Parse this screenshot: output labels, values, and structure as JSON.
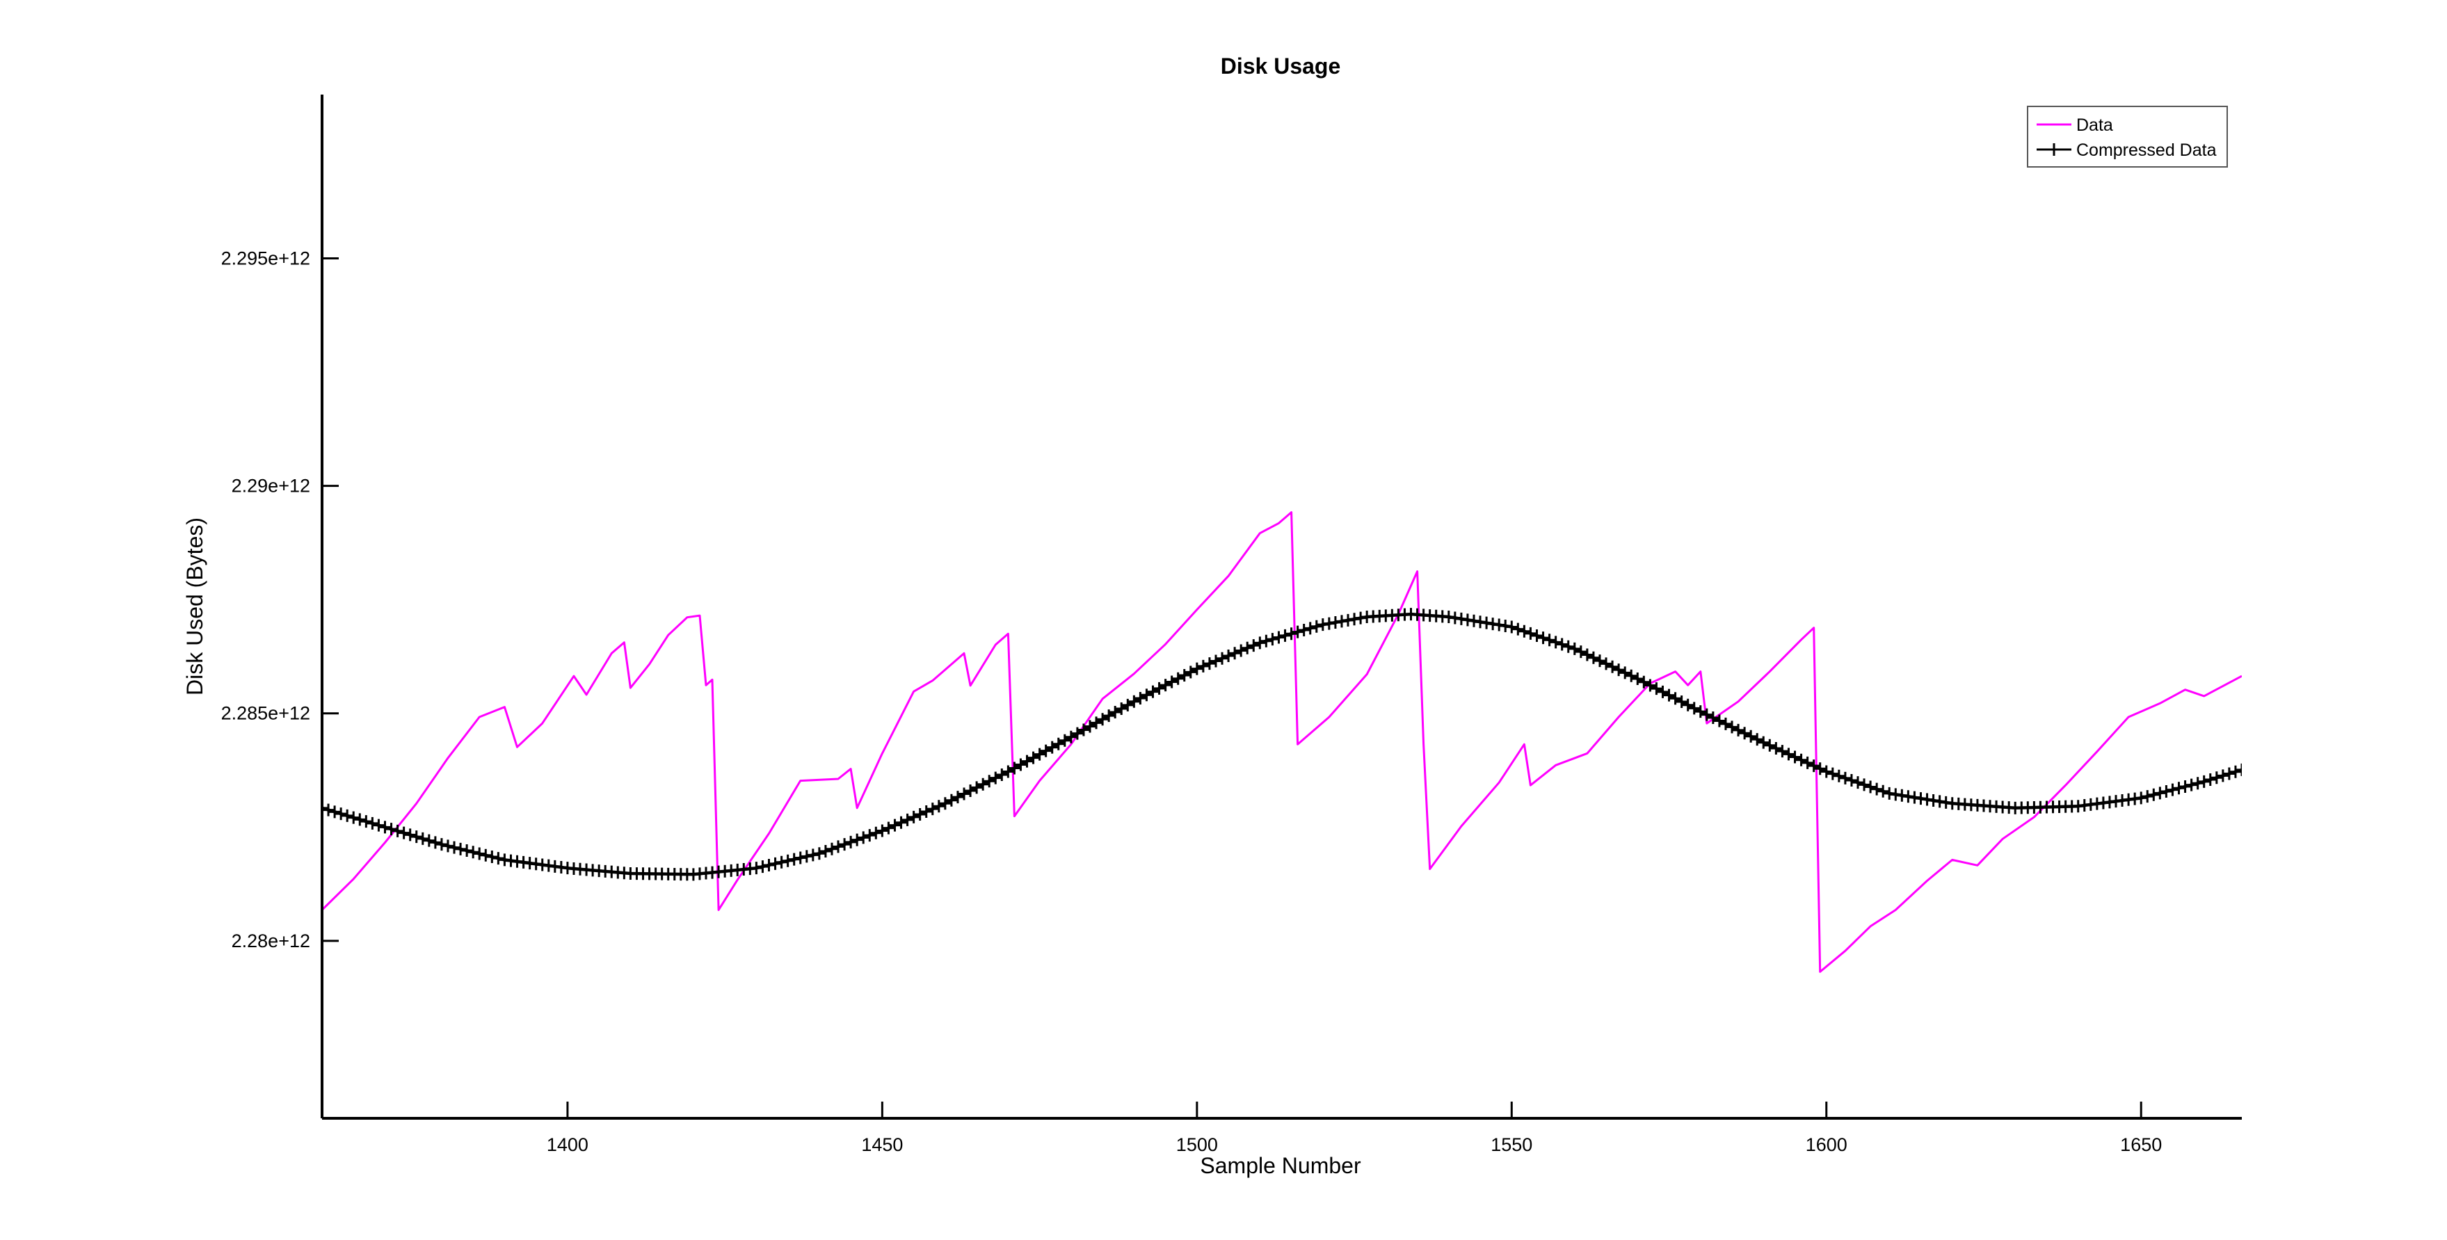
{
  "chart_data": {
    "type": "line",
    "title": "Disk Usage",
    "xlabel": "Sample Number",
    "ylabel": "Disk Used (Bytes)",
    "xlim": [
      1361,
      1666
    ],
    "ylim": [
      2276100000000.0,
      2298600000000.0
    ],
    "xticks": [
      1400,
      1450,
      1500,
      1550,
      1600,
      1650
    ],
    "xtick_labels": [
      "1400",
      "1450",
      "1500",
      "1550",
      "1600",
      "1650"
    ],
    "yticks": [
      2280000000000.0,
      2285000000000.0,
      2290000000000.0,
      2295000000000.0
    ],
    "ytick_labels": [
      "2.28e+12",
      "2.285e+12",
      "2.29e+12",
      "2.295e+12"
    ],
    "grid": false,
    "legend_position": "top-right",
    "series": [
      {
        "name": "Data",
        "color": "#ff00ff",
        "marker": "none",
        "points": [
          [
            1361,
            2280680000000.0
          ],
          [
            1366,
            2281360000000.0
          ],
          [
            1371,
            2282160000000.0
          ],
          [
            1376,
            2283020000000.0
          ],
          [
            1381,
            2284020000000.0
          ],
          [
            1386,
            2284920000000.0
          ],
          [
            1390,
            2285140000000.0
          ],
          [
            1392,
            2284260000000.0
          ],
          [
            1396,
            2284780000000.0
          ],
          [
            1401,
            2285820000000.0
          ],
          [
            1403,
            2285410000000.0
          ],
          [
            1407,
            2286320000000.0
          ],
          [
            1409,
            2286560000000.0
          ],
          [
            1410,
            2285560000000.0
          ],
          [
            1413,
            2286080000000.0
          ],
          [
            1416,
            2286720000000.0
          ],
          [
            1419,
            2287110000000.0
          ],
          [
            1421,
            2287150000000.0
          ],
          [
            1422,
            2285620000000.0
          ],
          [
            1423,
            2285740000000.0
          ],
          [
            1424,
            2280680000000.0
          ],
          [
            1427,
            2281340000000.0
          ],
          [
            1432,
            2282360000000.0
          ],
          [
            1437,
            2283520000000.0
          ],
          [
            1443,
            2283560000000.0
          ],
          [
            1445,
            2283780000000.0
          ],
          [
            1446,
            2282920000000.0
          ],
          [
            1450,
            2284120000000.0
          ],
          [
            1455,
            2285480000000.0
          ],
          [
            1458,
            2285720000000.0
          ],
          [
            1461,
            2286080000000.0
          ],
          [
            1463,
            2286320000000.0
          ],
          [
            1464,
            2285610000000.0
          ],
          [
            1468,
            2286510000000.0
          ],
          [
            1470,
            2286750000000.0
          ],
          [
            1471,
            2282740000000.0
          ],
          [
            1475,
            2283520000000.0
          ],
          [
            1480,
            2284320000000.0
          ],
          [
            1485,
            2285320000000.0
          ],
          [
            1490,
            2285870000000.0
          ],
          [
            1495,
            2286520000000.0
          ],
          [
            1500,
            2287280000000.0
          ],
          [
            1505,
            2288020000000.0
          ],
          [
            1510,
            2288960000000.0
          ],
          [
            1513,
            2289180000000.0
          ],
          [
            1515,
            2289420000000.0
          ],
          [
            1516,
            2284320000000.0
          ],
          [
            1521,
            2284920000000.0
          ],
          [
            1527,
            2285860000000.0
          ],
          [
            1532,
            2287180000000.0
          ],
          [
            1535,
            2288120000000.0
          ],
          [
            1536,
            2284320000000.0
          ],
          [
            1537,
            2281580000000.0
          ],
          [
            1542,
            2282520000000.0
          ],
          [
            1548,
            2283480000000.0
          ],
          [
            1552,
            2284320000000.0
          ],
          [
            1553,
            2283420000000.0
          ],
          [
            1557,
            2283860000000.0
          ],
          [
            1562,
            2284120000000.0
          ],
          [
            1567,
            2284920000000.0
          ],
          [
            1572,
            2285660000000.0
          ],
          [
            1576,
            2285920000000.0
          ],
          [
            1578,
            2285620000000.0
          ],
          [
            1580,
            2285920000000.0
          ],
          [
            1581,
            2284780000000.0
          ],
          [
            1586,
            2285260000000.0
          ],
          [
            1591,
            2285920000000.0
          ],
          [
            1596,
            2286620000000.0
          ],
          [
            1598,
            2286880000000.0
          ],
          [
            1599,
            2279320000000.0
          ],
          [
            1603,
            2279780000000.0
          ],
          [
            1607,
            2280320000000.0
          ],
          [
            1611,
            2280680000000.0
          ],
          [
            1616,
            2281320000000.0
          ],
          [
            1620,
            2281780000000.0
          ],
          [
            1624,
            2281660000000.0
          ],
          [
            1628,
            2282240000000.0
          ],
          [
            1633,
            2282720000000.0
          ],
          [
            1638,
            2283420000000.0
          ],
          [
            1643,
            2284160000000.0
          ],
          [
            1648,
            2284920000000.0
          ],
          [
            1653,
            2285220000000.0
          ],
          [
            1657,
            2285520000000.0
          ],
          [
            1660,
            2285380000000.0
          ],
          [
            1666,
            2285820000000.0
          ]
        ]
      },
      {
        "name": "Compressed Data",
        "color": "#000000",
        "marker": "+",
        "points": [
          [
            1361,
            2282920000000.0
          ],
          [
            1370,
            2282540000000.0
          ],
          [
            1380,
            2282120000000.0
          ],
          [
            1390,
            2281780000000.0
          ],
          [
            1400,
            2281600000000.0
          ],
          [
            1410,
            2281480000000.0
          ],
          [
            1420,
            2281460000000.0
          ],
          [
            1430,
            2281600000000.0
          ],
          [
            1440,
            2281920000000.0
          ],
          [
            1450,
            2282420000000.0
          ],
          [
            1460,
            2283020000000.0
          ],
          [
            1470,
            2283720000000.0
          ],
          [
            1480,
            2284480000000.0
          ],
          [
            1490,
            2285260000000.0
          ],
          [
            1500,
            2285980000000.0
          ],
          [
            1510,
            2286550000000.0
          ],
          [
            1520,
            2286950000000.0
          ],
          [
            1527,
            2287120000000.0
          ],
          [
            1534,
            2287180000000.0
          ],
          [
            1540,
            2287120000000.0
          ],
          [
            1550,
            2286900000000.0
          ],
          [
            1560,
            2286420000000.0
          ],
          [
            1570,
            2285760000000.0
          ],
          [
            1580,
            2285040000000.0
          ],
          [
            1590,
            2284360000000.0
          ],
          [
            1600,
            2283720000000.0
          ],
          [
            1610,
            2283240000000.0
          ],
          [
            1620,
            2283020000000.0
          ],
          [
            1630,
            2282920000000.0
          ],
          [
            1640,
            2282960000000.0
          ],
          [
            1650,
            2283140000000.0
          ],
          [
            1660,
            2283500000000.0
          ],
          [
            1666,
            2283760000000.0
          ]
        ]
      }
    ]
  }
}
